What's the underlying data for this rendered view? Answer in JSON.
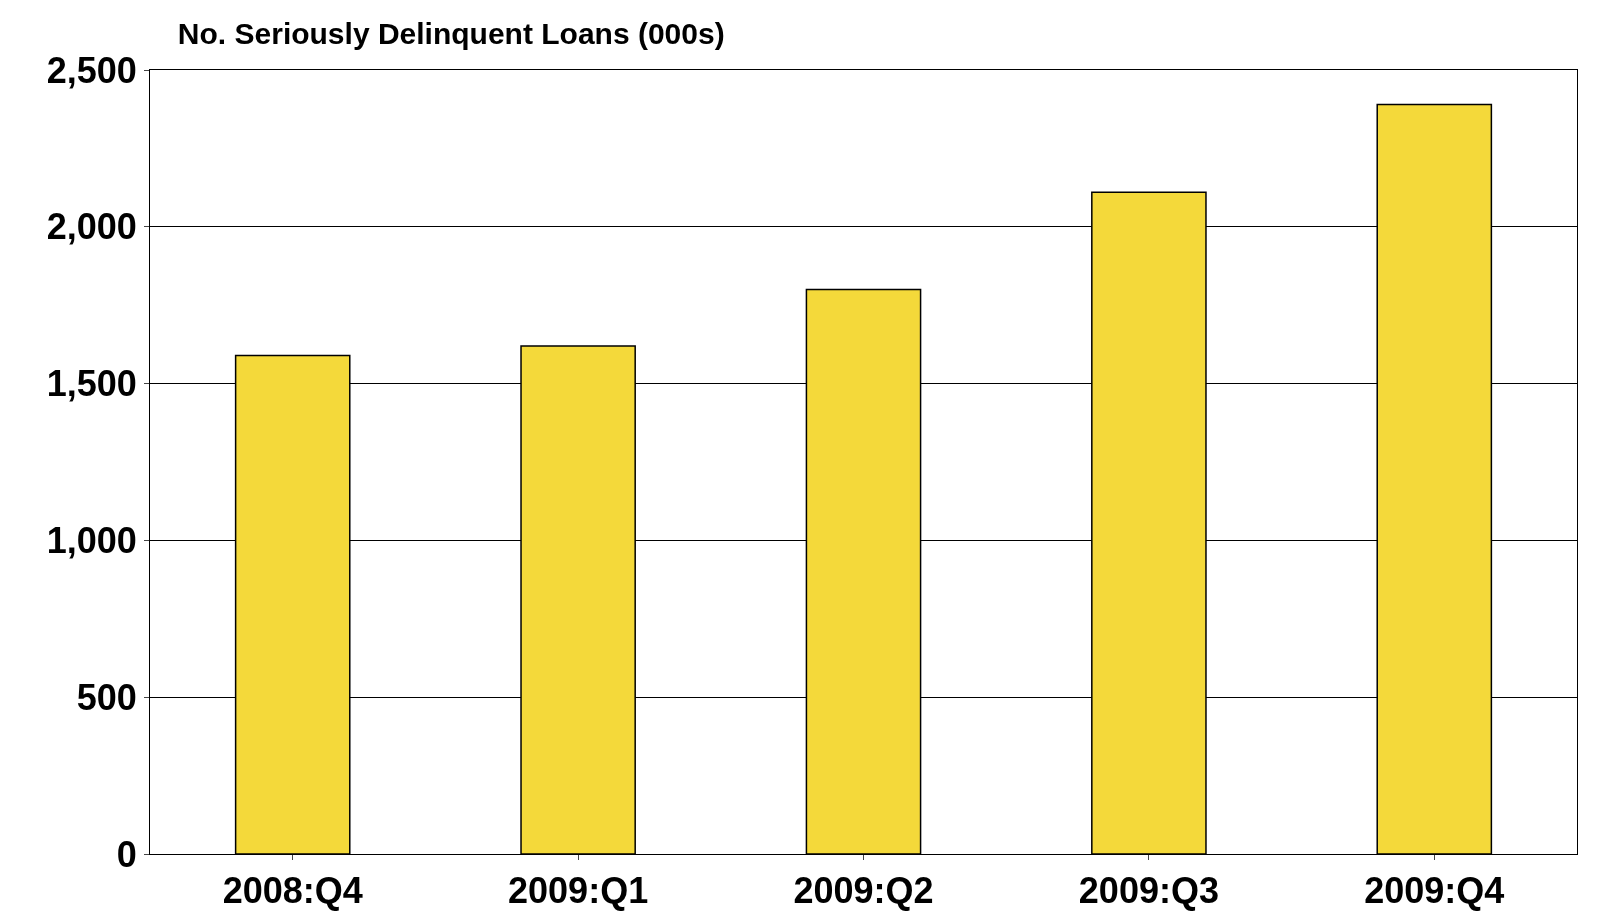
{
  "chart_data": {
    "type": "bar",
    "title": "No. Seriously Delinquent Loans (000s)",
    "categories": [
      "2008:Q4",
      "2009:Q1",
      "2009:Q2",
      "2009:Q3",
      "2009:Q4"
    ],
    "values": [
      1590,
      1620,
      1800,
      2110,
      2390
    ],
    "color": "#f4d93a",
    "ylim": [
      0,
      2500
    ],
    "yticks": [
      0,
      500,
      {
        "value": 1000,
        "label": "1,000"
      },
      {
        "value": 1500,
        "label": "1,500"
      },
      {
        "value": 2000,
        "label": "2,000"
      },
      {
        "value": 2500,
        "label": "2,500"
      }
    ],
    "grid": "y"
  }
}
